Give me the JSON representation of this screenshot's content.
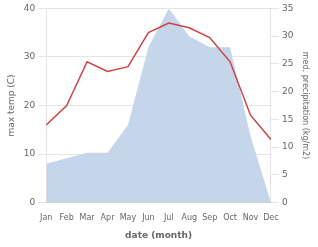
{
  "chart_data": {
    "type": "line",
    "categories": [
      "Jan",
      "Feb",
      "Mar",
      "Apr",
      "May",
      "Jun",
      "Jul",
      "Aug",
      "Sep",
      "Oct",
      "Nov",
      "Dec"
    ],
    "xlabel": "date (month)",
    "ylabel": "max temp (C)",
    "y2label": "med. precipitation (kg/m2)",
    "series": [
      {
        "type": "area",
        "color": "#c5d5ea",
        "axis": "y2",
        "values": [
          7,
          8,
          9,
          9,
          14,
          28,
          35,
          30,
          28,
          28,
          12,
          0
        ]
      },
      {
        "type": "line",
        "color": "#cc4444",
        "values": [
          16,
          20,
          29,
          27,
          28,
          35,
          37,
          36,
          34,
          29,
          18,
          13
        ]
      }
    ],
    "ylim": [
      0,
      40
    ],
    "yticks": [
      0,
      10,
      20,
      30,
      40
    ],
    "y2lim": [
      0,
      35
    ],
    "y2ticks": [
      0,
      5,
      10,
      15,
      20,
      25,
      30,
      35
    ],
    "grid": true
  }
}
